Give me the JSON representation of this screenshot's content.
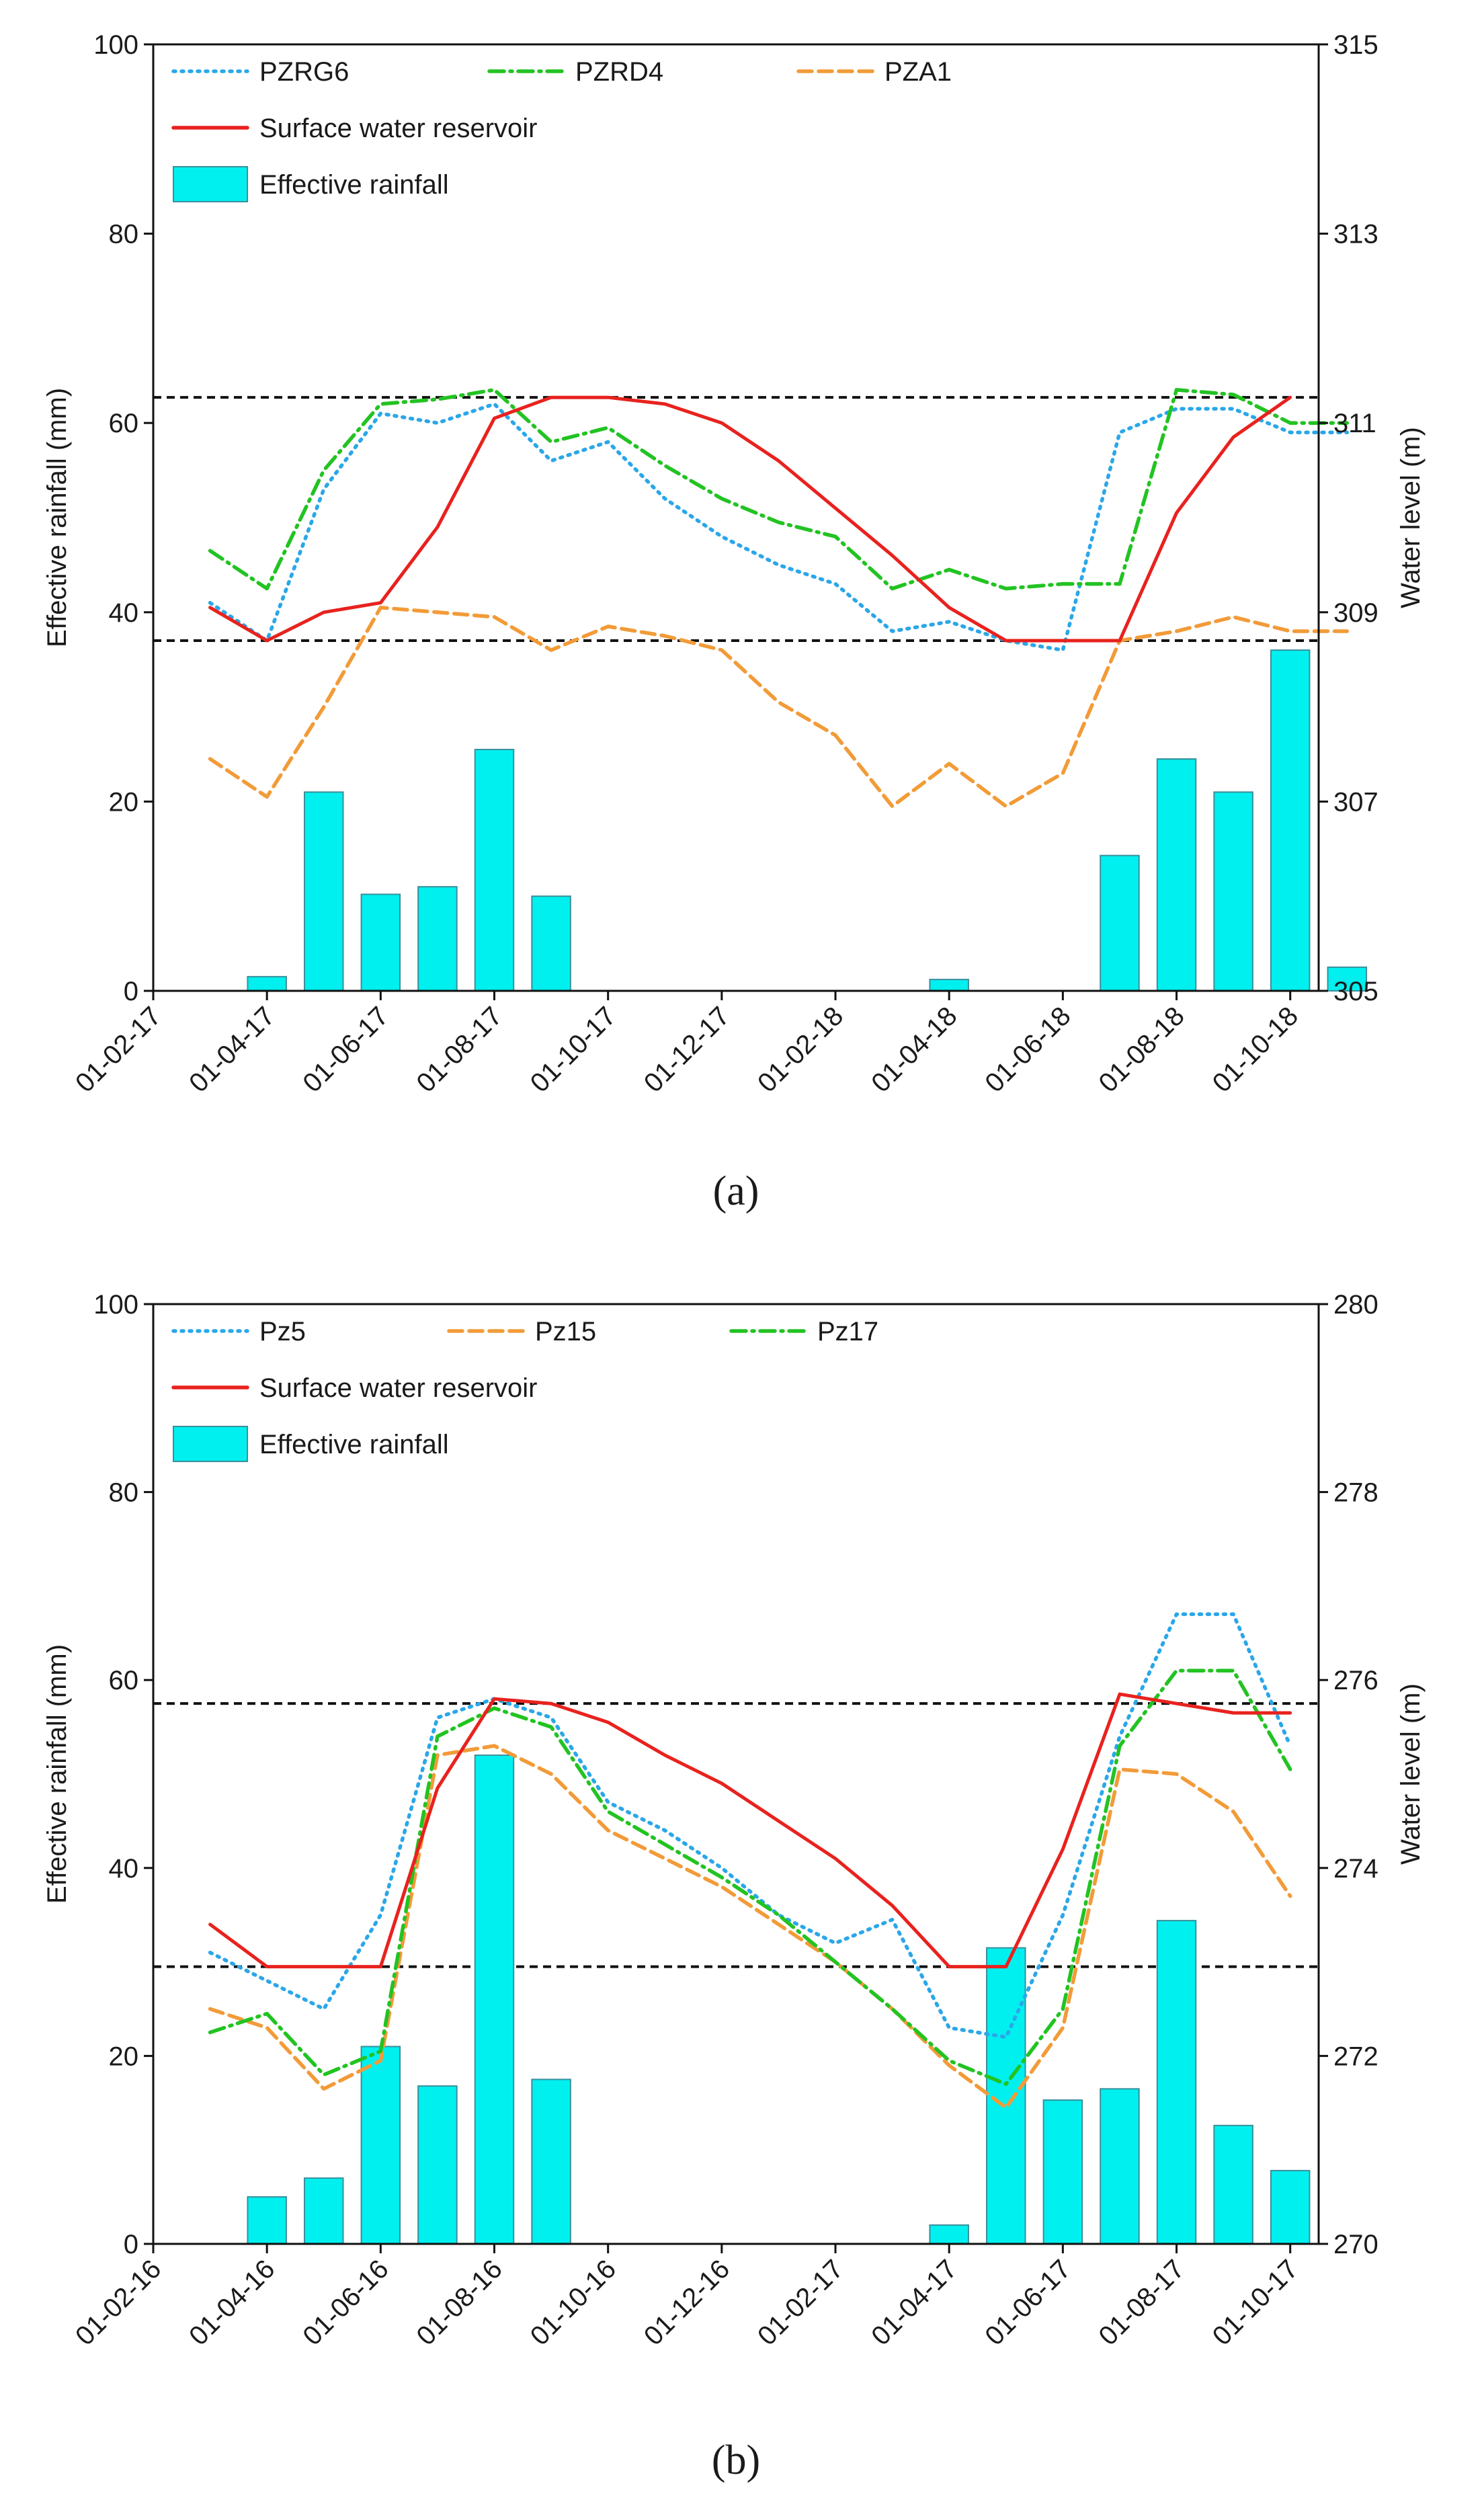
{
  "chart_data": [
    {
      "type": "bar+line",
      "panel_label": "(a)",
      "ylabel_left": "Effective rainfall (mm)",
      "ylabel_right": "Water level (m)",
      "ylim_left": [
        0,
        100
      ],
      "ylim_right": [
        305,
        315
      ],
      "yticks_left": [
        "0",
        "20",
        "40",
        "60",
        "80",
        "100"
      ],
      "yticks_right": [
        "305",
        "307",
        "309",
        "311",
        "313",
        "315"
      ],
      "xtick_labels": [
        "01-02-17",
        "01-04-17",
        "01-06-17",
        "01-08-17",
        "01-10-17",
        "01-12-17",
        "01-02-18",
        "01-04-18",
        "01-06-18",
        "01-08-18",
        "01-10-18"
      ],
      "x_months": [
        -1,
        1,
        3,
        5,
        7,
        9,
        11,
        13,
        15,
        17,
        19
      ],
      "x_range": [
        -1,
        19.5
      ],
      "legend": [
        {
          "name": "PZRG6",
          "style": "dotted",
          "color": "#2aa7e8"
        },
        {
          "name": "PZRD4",
          "style": "dashdot",
          "color": "#22c322"
        },
        {
          "name": "PZA1",
          "style": "dashed",
          "color": "#f29b38"
        },
        {
          "name": "Surface water reservoir",
          "style": "solid",
          "color": "#e8221e"
        },
        {
          "name": "Effective rainfall",
          "style": "bar",
          "color": "#00f0f0"
        }
      ],
      "reference_lines_right": [
        308.7,
        311.27
      ],
      "bars": {
        "name": "Effective rainfall",
        "months": [
          1,
          2,
          3,
          4,
          5,
          6,
          13,
          16,
          17,
          18,
          19,
          20
        ],
        "values": [
          1.5,
          21,
          10.2,
          11,
          25.5,
          10,
          1.2,
          14.3,
          24.5,
          21,
          36,
          2.5
        ]
      },
      "series": [
        {
          "name": "PZRG6",
          "style": "dotted",
          "color": "#2aa7e8",
          "months": [
            0,
            1,
            2,
            3,
            4,
            5,
            6,
            7,
            8,
            9,
            10,
            11,
            12,
            13,
            14,
            15,
            16,
            17,
            18,
            19,
            20
          ],
          "values": [
            309.1,
            308.7,
            310.3,
            311.1,
            311.0,
            311.2,
            310.6,
            310.8,
            310.2,
            309.8,
            309.5,
            309.3,
            308.8,
            308.9,
            308.7,
            308.6,
            310.9,
            311.15,
            311.15,
            310.9,
            310.9
          ]
        },
        {
          "name": "PZRD4",
          "style": "dashdot",
          "color": "#22c322",
          "months": [
            0,
            1,
            2,
            3,
            4,
            5,
            6,
            7,
            8,
            9,
            10,
            11,
            12,
            13,
            14,
            15,
            16,
            17,
            18,
            19,
            20
          ],
          "values": [
            309.65,
            309.25,
            310.5,
            311.2,
            311.25,
            311.35,
            310.8,
            310.95,
            310.55,
            310.2,
            309.95,
            309.8,
            309.25,
            309.45,
            309.25,
            309.3,
            309.3,
            311.35,
            311.3,
            311.0,
            311.0
          ]
        },
        {
          "name": "PZA1",
          "style": "dashed",
          "color": "#f29b38",
          "months": [
            0,
            1,
            2,
            3,
            4,
            5,
            6,
            7,
            8,
            9,
            10,
            11,
            12,
            13,
            14,
            15,
            16,
            17,
            18,
            19,
            20
          ],
          "values": [
            307.45,
            307.05,
            308.0,
            309.05,
            309.0,
            308.95,
            308.6,
            308.85,
            308.75,
            308.6,
            308.05,
            307.7,
            306.95,
            307.4,
            306.95,
            307.3,
            308.7,
            308.8,
            308.95,
            308.8,
            308.8
          ]
        },
        {
          "name": "Surface water reservoir",
          "style": "solid",
          "color": "#e8221e",
          "months": [
            0,
            1,
            2,
            3,
            4,
            5,
            6,
            7,
            8,
            9,
            10,
            11,
            12,
            13,
            14,
            15,
            16,
            17,
            18,
            19
          ],
          "values": [
            309.05,
            308.7,
            309.0,
            309.1,
            309.9,
            311.05,
            311.27,
            311.27,
            311.2,
            311.0,
            310.6,
            310.1,
            309.6,
            309.05,
            308.7,
            308.7,
            308.7,
            310.05,
            310.85,
            311.27
          ]
        }
      ]
    },
    {
      "type": "bar+line",
      "panel_label": "(b)",
      "ylabel_left": "Effective rainfall (mm)",
      "ylabel_right": "Water level (m)",
      "ylim_left": [
        0,
        100
      ],
      "ylim_right": [
        270,
        280
      ],
      "yticks_left": [
        "0",
        "20",
        "40",
        "60",
        "80",
        "100"
      ],
      "yticks_right": [
        "270",
        "272",
        "274",
        "276",
        "278",
        "280"
      ],
      "xtick_labels": [
        "01-02-16",
        "01-04-16",
        "01-06-16",
        "01-08-16",
        "01-10-16",
        "01-12-16",
        "01-02-17",
        "01-04-17",
        "01-06-17",
        "01-08-17",
        "01-10-17"
      ],
      "x_months": [
        -1,
        1,
        3,
        5,
        7,
        9,
        11,
        13,
        15,
        17,
        19
      ],
      "x_range": [
        -1,
        19.5
      ],
      "legend": [
        {
          "name": "Pz5",
          "style": "dotted",
          "color": "#2aa7e8"
        },
        {
          "name": "Pz15",
          "style": "dashed",
          "color": "#f29b38"
        },
        {
          "name": "Pz17",
          "style": "dashdot",
          "color": "#22c322"
        },
        {
          "name": "Surface water reservoir",
          "style": "solid",
          "color": "#e8221e"
        },
        {
          "name": "Effective rainfall",
          "style": "bar",
          "color": "#00f0f0"
        }
      ],
      "reference_lines_right": [
        272.95,
        275.75
      ],
      "bars": {
        "name": "Effective rainfall",
        "months": [
          1,
          2,
          3,
          4,
          5,
          6,
          13,
          14,
          15,
          16,
          17,
          18,
          19
        ],
        "values": [
          5,
          7,
          21,
          16.8,
          52,
          17.5,
          2,
          31.5,
          15.3,
          16.5,
          34.4,
          12.6,
          7.8
        ]
      },
      "series": [
        {
          "name": "Pz5",
          "style": "dotted",
          "color": "#2aa7e8",
          "months": [
            0,
            1,
            2,
            3,
            4,
            5,
            6,
            7,
            8,
            9,
            10,
            11,
            12,
            13,
            14,
            15,
            16,
            17,
            18,
            19
          ],
          "values": [
            273.1,
            272.8,
            272.5,
            273.5,
            275.6,
            275.8,
            275.6,
            274.7,
            274.4,
            274.0,
            273.5,
            273.2,
            273.45,
            272.3,
            272.2,
            273.5,
            275.4,
            276.7,
            276.7,
            275.3
          ]
        },
        {
          "name": "Pz15",
          "style": "dashed",
          "color": "#f29b38",
          "months": [
            0,
            1,
            2,
            3,
            4,
            5,
            6,
            7,
            8,
            9,
            10,
            11,
            12,
            13,
            14,
            15,
            16,
            17,
            18,
            19
          ],
          "values": [
            272.5,
            272.3,
            271.65,
            271.95,
            275.2,
            275.3,
            275.0,
            274.4,
            274.1,
            273.8,
            273.4,
            273.0,
            272.5,
            271.9,
            271.45,
            272.3,
            275.05,
            275.0,
            274.6,
            273.7
          ]
        },
        {
          "name": "Pz17",
          "style": "dashdot",
          "color": "#22c322",
          "months": [
            0,
            1,
            2,
            3,
            4,
            5,
            6,
            7,
            8,
            9,
            10,
            11,
            12,
            13,
            14,
            15,
            16,
            17,
            18,
            19
          ],
          "values": [
            272.25,
            272.45,
            271.8,
            272.05,
            275.4,
            275.7,
            275.5,
            274.6,
            274.25,
            273.9,
            273.5,
            273.0,
            272.5,
            271.95,
            271.7,
            272.5,
            275.3,
            276.1,
            276.1,
            275.05
          ]
        },
        {
          "name": "Surface water reservoir",
          "style": "solid",
          "color": "#e8221e",
          "months": [
            0,
            1,
            2,
            3,
            4,
            5,
            6,
            7,
            8,
            9,
            10,
            11,
            12,
            13,
            14,
            15,
            16,
            17,
            18,
            19
          ],
          "values": [
            273.4,
            272.95,
            272.95,
            272.95,
            274.85,
            275.8,
            275.75,
            275.55,
            275.2,
            274.9,
            274.5,
            274.1,
            273.6,
            272.95,
            272.95,
            274.2,
            275.85,
            275.75,
            275.65,
            275.65
          ]
        }
      ]
    }
  ]
}
